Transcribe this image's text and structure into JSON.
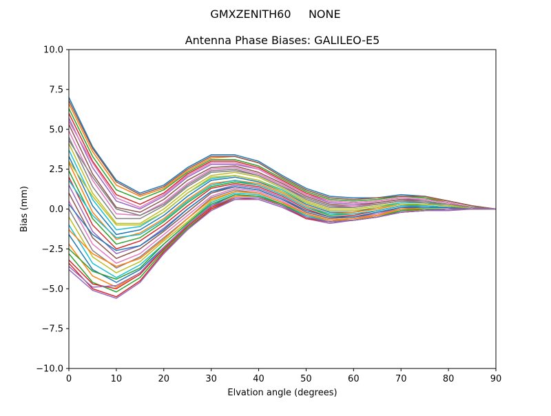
{
  "figure": {
    "suptitle": "GMXZENITH60     NONE"
  },
  "chart_data": {
    "type": "line",
    "title": "Antenna Phase Biases: GALILEO-E5",
    "xlabel": "Elvation angle (degrees)",
    "ylabel": "Bias (mm)",
    "xlim": [
      0,
      90
    ],
    "ylim": [
      -10,
      10
    ],
    "xticks": [
      0,
      10,
      20,
      30,
      40,
      50,
      60,
      70,
      80,
      90
    ],
    "xtick_labels": [
      "0",
      "10",
      "20",
      "30",
      "40",
      "50",
      "60",
      "70",
      "80",
      "90"
    ],
    "yticks": [
      -10,
      -7.5,
      -5,
      -2.5,
      0,
      2.5,
      5,
      7.5,
      10
    ],
    "ytick_labels": [
      "−10.0",
      "−7.5",
      "−5.0",
      "−2.5",
      "0.0",
      "2.5",
      "5.0",
      "7.5",
      "10.0"
    ],
    "grid": false,
    "legend": "none",
    "x": [
      0,
      5,
      10,
      15,
      20,
      25,
      30,
      35,
      40,
      45,
      50,
      55,
      60,
      65,
      70,
      75,
      80,
      85,
      90
    ],
    "series": [
      {
        "values": [
          7.0,
          3.9,
          1.8,
          1.0,
          1.5,
          2.6,
          3.4,
          3.4,
          3.0,
          2.1,
          1.3,
          0.8,
          0.7,
          0.7,
          0.9,
          0.8,
          0.5,
          0.2,
          0.0
        ]
      },
      {
        "values": [
          6.6,
          3.6,
          1.5,
          0.8,
          1.3,
          2.4,
          3.2,
          3.3,
          2.9,
          2.0,
          1.2,
          0.7,
          0.6,
          0.7,
          0.8,
          0.7,
          0.5,
          0.2,
          0.0
        ]
      },
      {
        "values": [
          6.3,
          3.3,
          1.2,
          0.6,
          1.2,
          2.3,
          3.1,
          3.1,
          2.7,
          1.9,
          1.1,
          0.6,
          0.5,
          0.6,
          0.8,
          0.7,
          0.4,
          0.1,
          0.0
        ]
      },
      {
        "values": [
          6.0,
          3.0,
          0.9,
          0.3,
          1.0,
          2.2,
          3.0,
          3.0,
          2.6,
          1.8,
          1.0,
          0.5,
          0.4,
          0.5,
          0.7,
          0.6,
          0.4,
          0.1,
          0.0
        ]
      },
      {
        "values": [
          5.7,
          2.6,
          0.5,
          0.0,
          0.8,
          2.0,
          2.8,
          2.8,
          2.5,
          1.7,
          0.9,
          0.4,
          0.3,
          0.4,
          0.6,
          0.6,
          0.4,
          0.1,
          0.0
        ]
      },
      {
        "values": [
          5.3,
          2.2,
          0.1,
          -0.2,
          0.6,
          1.8,
          2.6,
          2.7,
          2.3,
          1.6,
          0.8,
          0.3,
          0.2,
          0.4,
          0.6,
          0.5,
          0.3,
          0.1,
          0.0
        ]
      },
      {
        "values": [
          4.9,
          1.8,
          -0.3,
          -0.4,
          0.4,
          1.6,
          2.5,
          2.6,
          2.2,
          1.5,
          0.7,
          0.2,
          0.2,
          0.3,
          0.5,
          0.5,
          0.3,
          0.1,
          0.0
        ]
      },
      {
        "values": [
          4.5,
          1.4,
          -0.6,
          -0.6,
          0.2,
          1.4,
          2.3,
          2.4,
          2.1,
          1.4,
          0.6,
          0.1,
          0.1,
          0.3,
          0.5,
          0.5,
          0.3,
          0.1,
          0.0
        ]
      },
      {
        "values": [
          4.1,
          1.0,
          -0.9,
          -0.9,
          0.0,
          1.2,
          2.1,
          2.3,
          2.0,
          1.3,
          0.5,
          0.0,
          0.0,
          0.2,
          0.4,
          0.4,
          0.3,
          0.0,
          0.0
        ]
      },
      {
        "values": [
          3.7,
          0.6,
          -1.3,
          -1.1,
          -0.2,
          1.0,
          1.9,
          2.1,
          1.8,
          1.2,
          0.4,
          -0.1,
          -0.1,
          0.1,
          0.4,
          0.4,
          0.2,
          0.0,
          0.0
        ]
      },
      {
        "values": [
          3.3,
          0.2,
          -1.6,
          -1.3,
          -0.4,
          0.8,
          1.8,
          2.0,
          1.7,
          1.1,
          0.3,
          -0.2,
          -0.2,
          0.1,
          0.3,
          0.3,
          0.2,
          0.0,
          0.0
        ]
      },
      {
        "values": [
          2.9,
          -0.2,
          -1.9,
          -1.5,
          -0.6,
          0.6,
          1.6,
          1.8,
          1.6,
          1.0,
          0.2,
          -0.3,
          -0.2,
          0.0,
          0.3,
          0.3,
          0.2,
          0.0,
          0.0
        ]
      },
      {
        "values": [
          2.4,
          -0.6,
          -2.2,
          -1.8,
          -0.8,
          0.4,
          1.4,
          1.7,
          1.5,
          0.9,
          0.1,
          -0.4,
          -0.3,
          -0.1,
          0.2,
          0.3,
          0.2,
          0.0,
          0.0
        ]
      },
      {
        "values": [
          2.0,
          -1.0,
          -2.5,
          -2.0,
          -1.0,
          0.2,
          1.3,
          1.6,
          1.4,
          0.8,
          0.0,
          -0.5,
          -0.4,
          -0.1,
          0.2,
          0.2,
          0.1,
          0.0,
          0.0
        ]
      },
      {
        "values": [
          1.5,
          -1.4,
          -2.8,
          -2.3,
          -1.2,
          0.0,
          1.1,
          1.5,
          1.3,
          0.7,
          -0.1,
          -0.5,
          -0.5,
          -0.2,
          0.1,
          0.2,
          0.1,
          0.0,
          0.0
        ]
      },
      {
        "values": [
          1.0,
          -1.8,
          -3.1,
          -2.5,
          -1.4,
          -0.2,
          1.0,
          1.4,
          1.2,
          0.6,
          -0.2,
          -0.6,
          -0.5,
          -0.3,
          0.1,
          0.2,
          0.1,
          0.0,
          0.0
        ]
      },
      {
        "values": [
          0.5,
          -2.2,
          -3.4,
          -2.8,
          -1.6,
          -0.4,
          0.8,
          1.3,
          1.1,
          0.5,
          -0.3,
          -0.7,
          -0.6,
          -0.3,
          0.0,
          0.1,
          0.1,
          0.0,
          0.0
        ]
      },
      {
        "values": [
          0.0,
          -2.6,
          -3.7,
          -3.0,
          -1.8,
          -0.6,
          0.7,
          1.2,
          1.0,
          0.4,
          -0.3,
          -0.7,
          -0.6,
          -0.4,
          0.0,
          0.1,
          0.1,
          0.0,
          0.0
        ]
      },
      {
        "values": [
          -0.5,
          -3.0,
          -4.0,
          -3.3,
          -2.0,
          -0.8,
          0.5,
          1.1,
          1.0,
          0.4,
          -0.4,
          -0.7,
          -0.7,
          -0.4,
          -0.1,
          0.1,
          0.1,
          0.0,
          0.0
        ]
      },
      {
        "values": [
          -1.0,
          -3.4,
          -4.3,
          -3.5,
          -2.2,
          -0.9,
          0.4,
          1.0,
          0.9,
          0.3,
          -0.4,
          -0.8,
          -0.7,
          -0.5,
          -0.1,
          0.0,
          0.0,
          0.0,
          0.0
        ]
      },
      {
        "values": [
          -1.6,
          -3.8,
          -4.6,
          -3.8,
          -2.4,
          -1.0,
          0.2,
          0.9,
          0.8,
          0.3,
          -0.5,
          -0.8,
          -0.7,
          -0.5,
          -0.1,
          0.0,
          0.0,
          0.0,
          0.0
        ]
      },
      {
        "values": [
          -2.2,
          -4.2,
          -4.9,
          -4.0,
          -2.5,
          -1.1,
          0.1,
          0.8,
          0.8,
          0.2,
          -0.5,
          -0.8,
          -0.7,
          -0.5,
          -0.2,
          0.0,
          0.0,
          0.0,
          0.0
        ]
      },
      {
        "values": [
          -2.8,
          -4.6,
          -5.2,
          -4.3,
          -2.6,
          -1.2,
          0.0,
          0.7,
          0.7,
          0.2,
          -0.6,
          -0.8,
          -0.7,
          -0.5,
          -0.2,
          -0.1,
          0.0,
          0.0,
          0.0
        ]
      },
      {
        "values": [
          -3.4,
          -5.0,
          -5.5,
          -4.5,
          -2.7,
          -1.3,
          0.0,
          0.6,
          0.7,
          0.2,
          -0.6,
          -0.8,
          -0.7,
          -0.5,
          -0.2,
          -0.1,
          0.0,
          0.0,
          0.0
        ]
      },
      {
        "values": [
          -3.8,
          -5.1,
          -5.6,
          -4.6,
          -2.8,
          -1.3,
          -0.1,
          0.6,
          0.6,
          0.1,
          -0.6,
          -0.9,
          -0.7,
          -0.5,
          -0.2,
          -0.1,
          -0.1,
          0.0,
          0.0
        ]
      },
      {
        "values": [
          6.8,
          3.8,
          1.7,
          0.9,
          1.4,
          2.5,
          3.3,
          3.3,
          2.9,
          2.0,
          1.2,
          0.7,
          0.6,
          0.7,
          0.8,
          0.8,
          0.5,
          0.2,
          0.0
        ]
      },
      {
        "values": [
          5.5,
          2.9,
          0.7,
          0.1,
          0.9,
          2.1,
          2.9,
          2.9,
          2.5,
          1.7,
          0.9,
          0.5,
          0.4,
          0.5,
          0.7,
          0.6,
          0.4,
          0.1,
          0.0
        ]
      },
      {
        "values": [
          4.3,
          2.0,
          0.0,
          -0.4,
          0.3,
          1.5,
          2.4,
          2.5,
          2.1,
          1.4,
          0.7,
          0.2,
          0.1,
          0.3,
          0.5,
          0.4,
          0.3,
          0.1,
          0.0
        ]
      },
      {
        "values": [
          3.0,
          0.8,
          -1.0,
          -1.0,
          -0.2,
          1.0,
          2.0,
          2.1,
          1.8,
          1.1,
          0.4,
          -0.1,
          -0.1,
          0.1,
          0.3,
          0.3,
          0.2,
          0.0,
          0.0
        ]
      },
      {
        "values": [
          1.8,
          -0.4,
          -1.8,
          -1.6,
          -0.7,
          0.5,
          1.5,
          1.8,
          1.5,
          0.9,
          0.1,
          -0.3,
          -0.3,
          -0.1,
          0.2,
          0.2,
          0.1,
          0.0,
          0.0
        ]
      },
      {
        "values": [
          0.3,
          -1.6,
          -2.6,
          -2.3,
          -1.3,
          0.0,
          1.1,
          1.4,
          1.2,
          0.6,
          -0.1,
          -0.5,
          -0.5,
          -0.2,
          0.1,
          0.1,
          0.1,
          0.0,
          0.0
        ]
      },
      {
        "values": [
          -1.3,
          -2.8,
          -3.6,
          -3.1,
          -1.9,
          -0.6,
          0.6,
          1.1,
          1.0,
          0.4,
          -0.3,
          -0.7,
          -0.6,
          -0.4,
          0.0,
          0.0,
          0.0,
          0.0,
          0.0
        ]
      },
      {
        "values": [
          -2.5,
          -3.9,
          -4.4,
          -3.7,
          -2.2,
          -0.9,
          0.3,
          0.9,
          0.8,
          0.3,
          -0.5,
          -0.8,
          -0.7,
          -0.5,
          -0.1,
          0.0,
          0.0,
          0.0,
          0.0
        ]
      },
      {
        "values": [
          -3.2,
          -4.7,
          -5.0,
          -4.1,
          -2.5,
          -1.1,
          0.1,
          0.7,
          0.7,
          0.2,
          -0.6,
          -0.8,
          -0.7,
          -0.5,
          -0.2,
          -0.1,
          0.0,
          0.0,
          0.0
        ]
      },
      {
        "values": [
          -3.6,
          -4.9,
          -4.8,
          -4.0,
          -2.4,
          -1.0,
          0.2,
          0.7,
          0.7,
          0.2,
          -0.5,
          -0.8,
          -0.7,
          -0.5,
          -0.2,
          -0.1,
          0.0,
          0.0,
          0.0
        ]
      }
    ]
  }
}
